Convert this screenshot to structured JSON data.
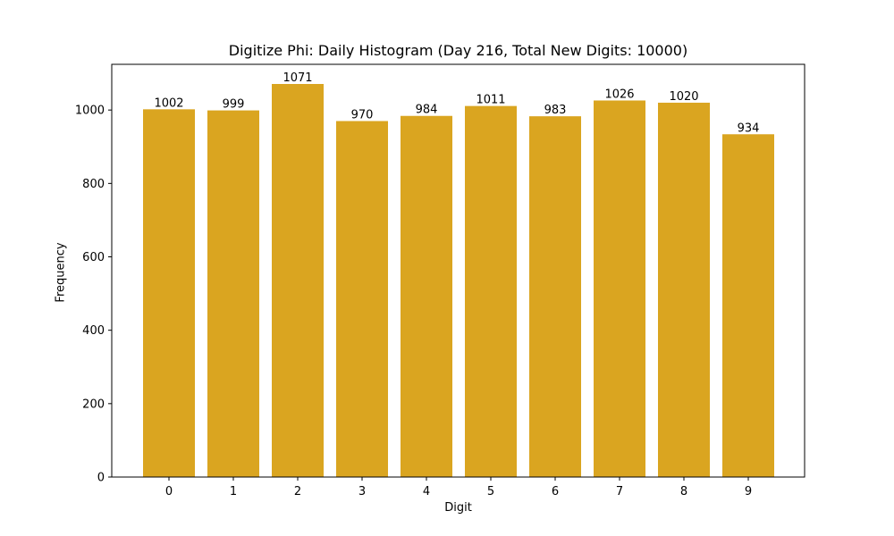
{
  "chart_data": {
    "type": "bar",
    "title": "Digitize Phi: Daily Histogram (Day 216, Total New Digits: 10000)",
    "xlabel": "Digit",
    "ylabel": "Frequency",
    "categories": [
      "0",
      "1",
      "2",
      "3",
      "4",
      "5",
      "6",
      "7",
      "8",
      "9"
    ],
    "values": [
      1002,
      999,
      1071,
      970,
      984,
      1011,
      983,
      1026,
      1020,
      934
    ],
    "bar_labels": [
      "1002",
      "999",
      "1071",
      "970",
      "984",
      "1011",
      "983",
      "1026",
      "1020",
      "934"
    ],
    "yticks": [
      0,
      200,
      400,
      600,
      800,
      1000
    ],
    "ylim": [
      0,
      1124.55
    ],
    "grid": false,
    "legend": null,
    "bar_color": "#DAA520"
  }
}
